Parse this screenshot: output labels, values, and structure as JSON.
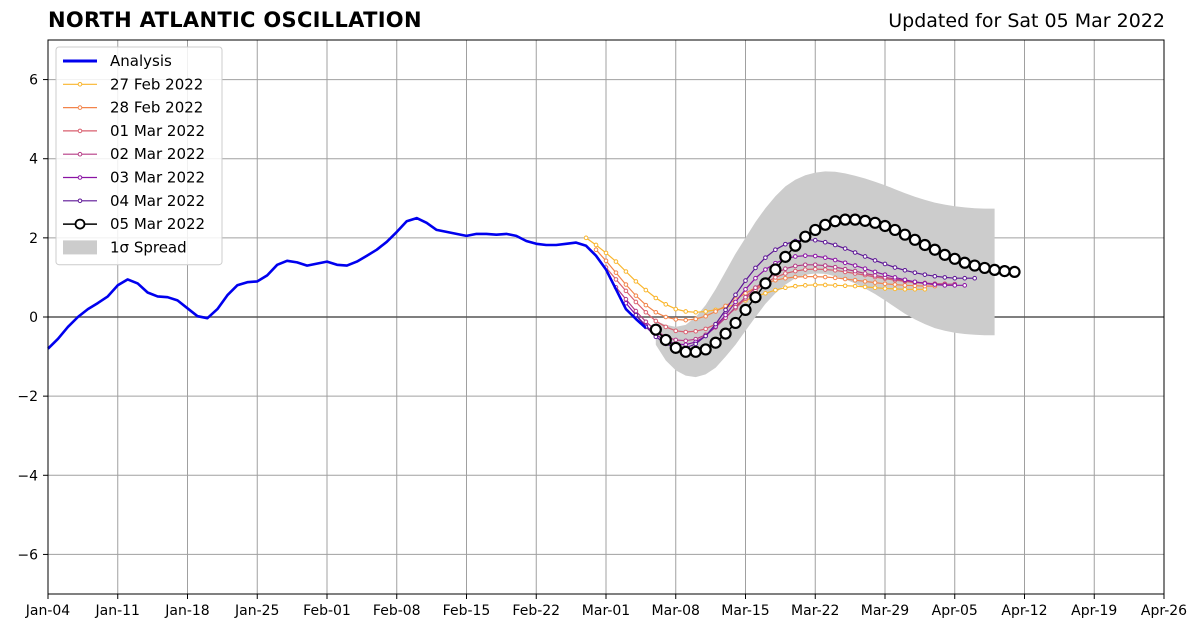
{
  "header": {
    "title": "NORTH ATLANTIC OSCILLATION",
    "updated": "Updated for Sat 05 Mar 2022"
  },
  "chart_data": {
    "type": "line",
    "title": "NORTH ATLANTIC OSCILLATION",
    "subtitle": "Updated for Sat 05 Mar 2022",
    "xlabel": "",
    "ylabel": "",
    "x_unit": "days since Jan-04 2022",
    "xlim": [
      0,
      112
    ],
    "ylim": [
      -7,
      7
    ],
    "x_ticks": [
      0,
      7,
      14,
      21,
      28,
      35,
      42,
      49,
      56,
      63,
      70,
      77,
      84,
      91,
      98,
      105,
      112
    ],
    "x_tick_labels": [
      "Jan-04",
      "Jan-11",
      "Jan-18",
      "Jan-25",
      "Feb-01",
      "Feb-08",
      "Feb-15",
      "Feb-22",
      "Mar-01",
      "Mar-08",
      "Mar-15",
      "Mar-22",
      "Mar-29",
      "Apr-05",
      "Apr-12",
      "Apr-19",
      "Apr-26"
    ],
    "y_ticks": [
      -6,
      -4,
      -2,
      0,
      2,
      4,
      6
    ],
    "y_tick_labels": [
      "−6",
      "−4",
      "−2",
      "0",
      "2",
      "4",
      "6"
    ],
    "grid": true,
    "legend_position": "top-left",
    "analysis": {
      "name": "Analysis",
      "color": "#0000ee",
      "x_start": 0,
      "values": [
        -0.8,
        -0.55,
        -0.25,
        0.0,
        0.2,
        0.35,
        0.52,
        0.8,
        0.95,
        0.85,
        0.62,
        0.52,
        0.5,
        0.42,
        0.22,
        0.02,
        -0.03,
        0.2,
        0.55,
        0.8,
        0.88,
        0.9,
        1.05,
        1.32,
        1.42,
        1.38,
        1.3,
        1.35,
        1.4,
        1.32,
        1.3,
        1.4,
        1.55,
        1.7,
        1.9,
        2.15,
        2.42,
        2.5,
        2.38,
        2.2,
        2.15,
        2.1,
        2.05,
        2.1,
        2.1,
        2.08,
        2.1,
        2.05,
        1.92,
        1.85,
        1.82,
        1.82,
        1.85,
        1.88,
        1.8,
        1.55,
        1.2,
        0.7,
        0.2,
        -0.05,
        -0.28
      ]
    },
    "forecasts": [
      {
        "name": "27 Feb 2022",
        "color": "#f9b52c",
        "x_start": 54,
        "values": [
          2.0,
          1.82,
          1.62,
          1.4,
          1.15,
          0.9,
          0.68,
          0.48,
          0.32,
          0.2,
          0.14,
          0.12,
          0.14,
          0.18,
          0.24,
          0.32,
          0.42,
          0.52,
          0.6,
          0.68,
          0.74,
          0.78,
          0.8,
          0.81,
          0.81,
          0.8,
          0.79,
          0.78,
          0.76,
          0.74,
          0.72,
          0.71,
          0.7,
          0.7,
          0.7
        ]
      },
      {
        "name": "28 Feb 2022",
        "color": "#f2844b",
        "x_start": 55,
        "values": [
          1.7,
          1.42,
          1.12,
          0.82,
          0.54,
          0.3,
          0.12,
          0.0,
          -0.06,
          -0.08,
          -0.05,
          0.02,
          0.14,
          0.28,
          0.44,
          0.6,
          0.74,
          0.85,
          0.93,
          0.98,
          1.01,
          1.02,
          1.02,
          1.01,
          0.99,
          0.96,
          0.93,
          0.9,
          0.87,
          0.84,
          0.82,
          0.8,
          0.79,
          0.78,
          0.78
        ]
      },
      {
        "name": "01 Mar 2022",
        "color": "#d95f6f",
        "x_start": 56,
        "values": [
          1.25,
          0.95,
          0.66,
          0.38,
          0.12,
          -0.1,
          -0.25,
          -0.35,
          -0.38,
          -0.36,
          -0.3,
          -0.18,
          0.0,
          0.22,
          0.46,
          0.68,
          0.86,
          1.0,
          1.1,
          1.16,
          1.2,
          1.21,
          1.2,
          1.18,
          1.14,
          1.1,
          1.06,
          1.01,
          0.97,
          0.93,
          0.9,
          0.87,
          0.85,
          0.84,
          0.84
        ]
      },
      {
        "name": "02 Mar 2022",
        "color": "#b63b85",
        "x_start": 57,
        "values": [
          0.75,
          0.45,
          0.15,
          -0.12,
          -0.34,
          -0.5,
          -0.58,
          -0.6,
          -0.56,
          -0.45,
          -0.26,
          -0.02,
          0.25,
          0.5,
          0.74,
          0.94,
          1.1,
          1.22,
          1.29,
          1.32,
          1.32,
          1.3,
          1.26,
          1.21,
          1.16,
          1.1,
          1.05,
          1.0,
          0.96,
          0.92,
          0.88,
          0.86,
          0.84,
          0.83,
          0.83
        ]
      },
      {
        "name": "03 Mar 2022",
        "color": "#8b14a4",
        "x_start": 58,
        "values": [
          0.35,
          0.05,
          -0.22,
          -0.45,
          -0.6,
          -0.68,
          -0.7,
          -0.63,
          -0.48,
          -0.24,
          0.05,
          0.38,
          0.7,
          0.98,
          1.2,
          1.36,
          1.47,
          1.53,
          1.55,
          1.54,
          1.5,
          1.44,
          1.37,
          1.3,
          1.22,
          1.14,
          1.07,
          1.0,
          0.94,
          0.89,
          0.85,
          0.82,
          0.8,
          0.8,
          0.8
        ]
      },
      {
        "name": "04 Mar 2022",
        "color": "#5d1596",
        "x_start": 59,
        "values": [
          0.05,
          -0.25,
          -0.5,
          -0.68,
          -0.78,
          -0.78,
          -0.68,
          -0.48,
          -0.18,
          0.18,
          0.56,
          0.92,
          1.24,
          1.5,
          1.7,
          1.84,
          1.92,
          1.95,
          1.94,
          1.89,
          1.82,
          1.73,
          1.63,
          1.53,
          1.43,
          1.34,
          1.25,
          1.18,
          1.12,
          1.07,
          1.03,
          1.0,
          0.98,
          0.98,
          0.98
        ]
      },
      {
        "name": "05 Mar 2022",
        "color": "#000000",
        "x_start": 61,
        "values": [
          -0.32,
          -0.58,
          -0.78,
          -0.88,
          -0.88,
          -0.82,
          -0.65,
          -0.42,
          -0.15,
          0.18,
          0.5,
          0.85,
          1.2,
          1.52,
          1.8,
          2.03,
          2.2,
          2.33,
          2.42,
          2.46,
          2.46,
          2.43,
          2.38,
          2.3,
          2.2,
          2.08,
          1.95,
          1.82,
          1.7,
          1.57,
          1.47,
          1.37,
          1.3,
          1.24,
          1.19,
          1.16,
          1.14
        ]
      }
    ],
    "spread": {
      "name": "1σ Spread",
      "color": "#cccccc",
      "x_start": 61,
      "upper": [
        -0.1,
        -0.2,
        -0.25,
        -0.2,
        0.0,
        0.3,
        0.7,
        1.15,
        1.6,
        2.0,
        2.4,
        2.75,
        3.05,
        3.3,
        3.47,
        3.58,
        3.65,
        3.68,
        3.67,
        3.63,
        3.57,
        3.5,
        3.42,
        3.33,
        3.23,
        3.13,
        3.04,
        2.96,
        2.89,
        2.84,
        2.8,
        2.77,
        2.75,
        2.74,
        2.74
      ],
      "lower": [
        -0.7,
        -1.1,
        -1.35,
        -1.48,
        -1.52,
        -1.45,
        -1.28,
        -1.0,
        -0.7,
        -0.35,
        0.0,
        0.33,
        0.6,
        0.82,
        0.98,
        1.07,
        1.1,
        1.09,
        1.03,
        0.95,
        0.85,
        0.72,
        0.58,
        0.42,
        0.25,
        0.08,
        -0.06,
        -0.18,
        -0.28,
        -0.35,
        -0.4,
        -0.43,
        -0.45,
        -0.46,
        -0.46
      ]
    }
  }
}
